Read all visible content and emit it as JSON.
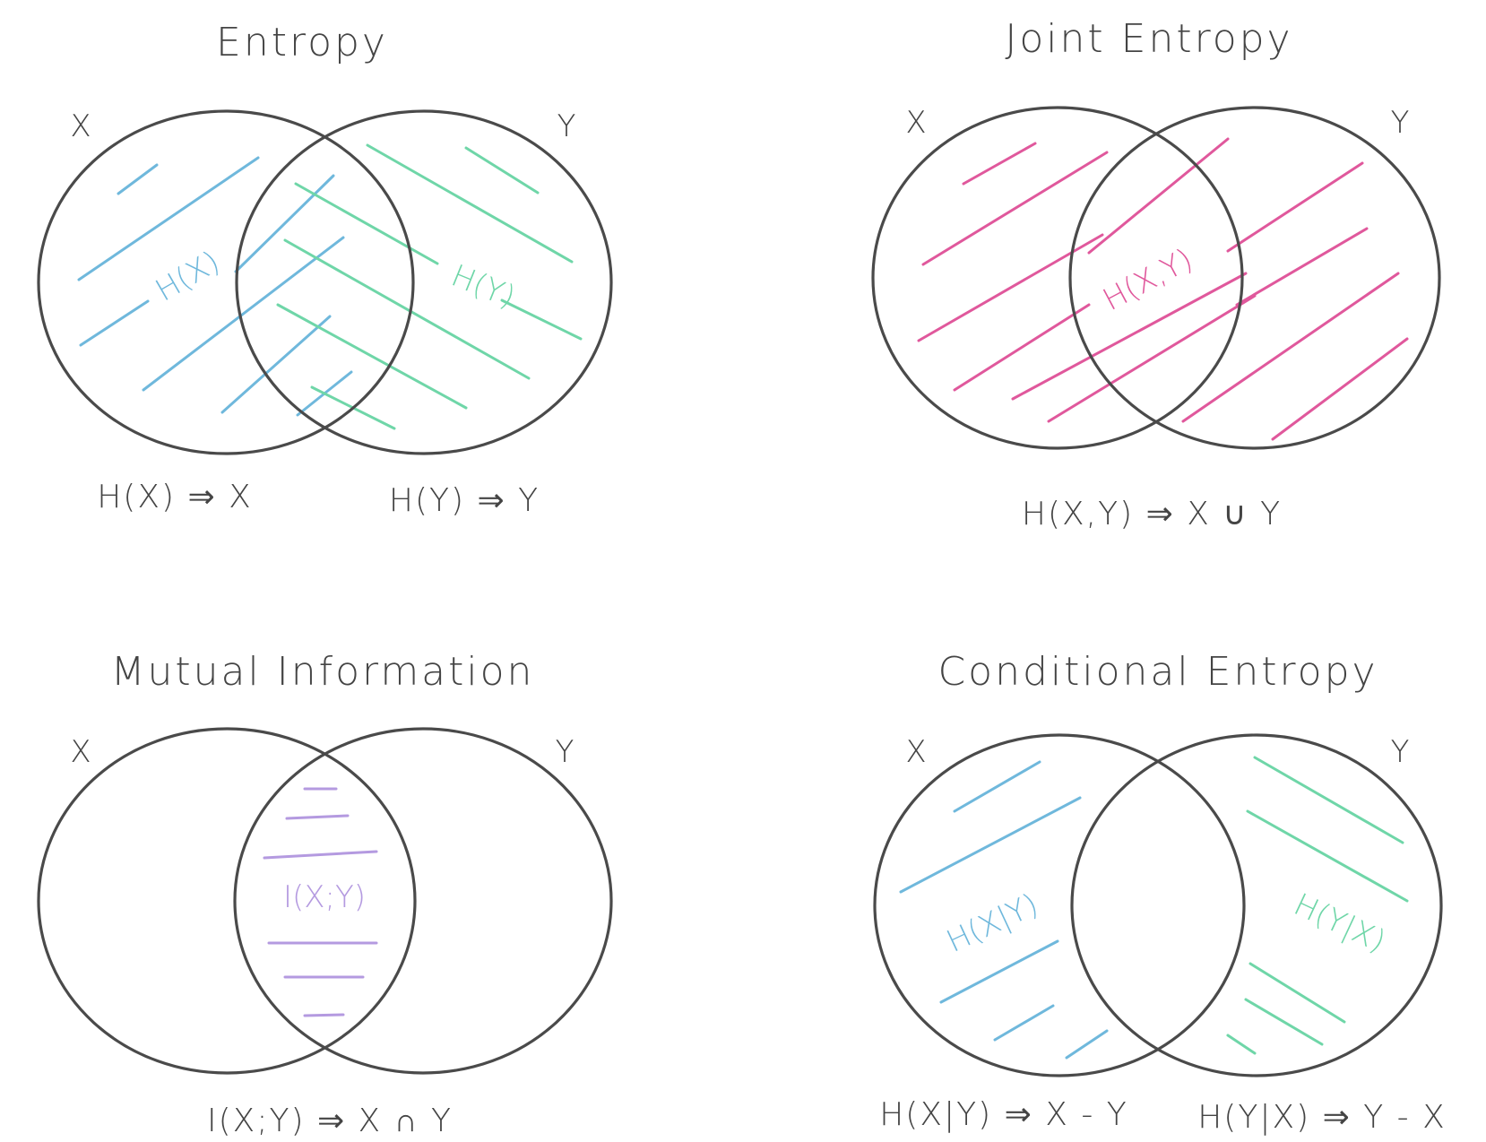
{
  "colors": {
    "outline": "#4a4a4a",
    "text": "#444444",
    "blue": "#6fb8dc",
    "green": "#6fd6a8",
    "pink": "#e0589c",
    "purple": "#b49ae0"
  },
  "panels": {
    "entropy": {
      "title": "Entropy",
      "set_x": "X",
      "set_y": "Y",
      "region_x_label": "H(X)",
      "region_y_label": "H(Y)",
      "formula_x": "H(X) ⇒ X",
      "formula_y": "H(Y) ⇒ Y"
    },
    "joint": {
      "title": "Joint Entropy",
      "set_x": "X",
      "set_y": "Y",
      "region_label": "H(X,Y)",
      "formula": "H(X,Y) ⇒ X ∪ Y"
    },
    "mutual": {
      "title": "Mutual Information",
      "set_x": "X",
      "set_y": "Y",
      "region_label": "I(X;Y)",
      "formula": "I(X;Y) ⇒ X ∩ Y"
    },
    "conditional": {
      "title": "Conditional Entropy",
      "set_x": "X",
      "set_y": "Y",
      "region_x_label": "H(X|Y)",
      "region_y_label": "H(Y|X)",
      "formula_x": "H(X|Y) ⇒ X - Y",
      "formula_y": "H(Y|X) ⇒ Y - X"
    }
  }
}
